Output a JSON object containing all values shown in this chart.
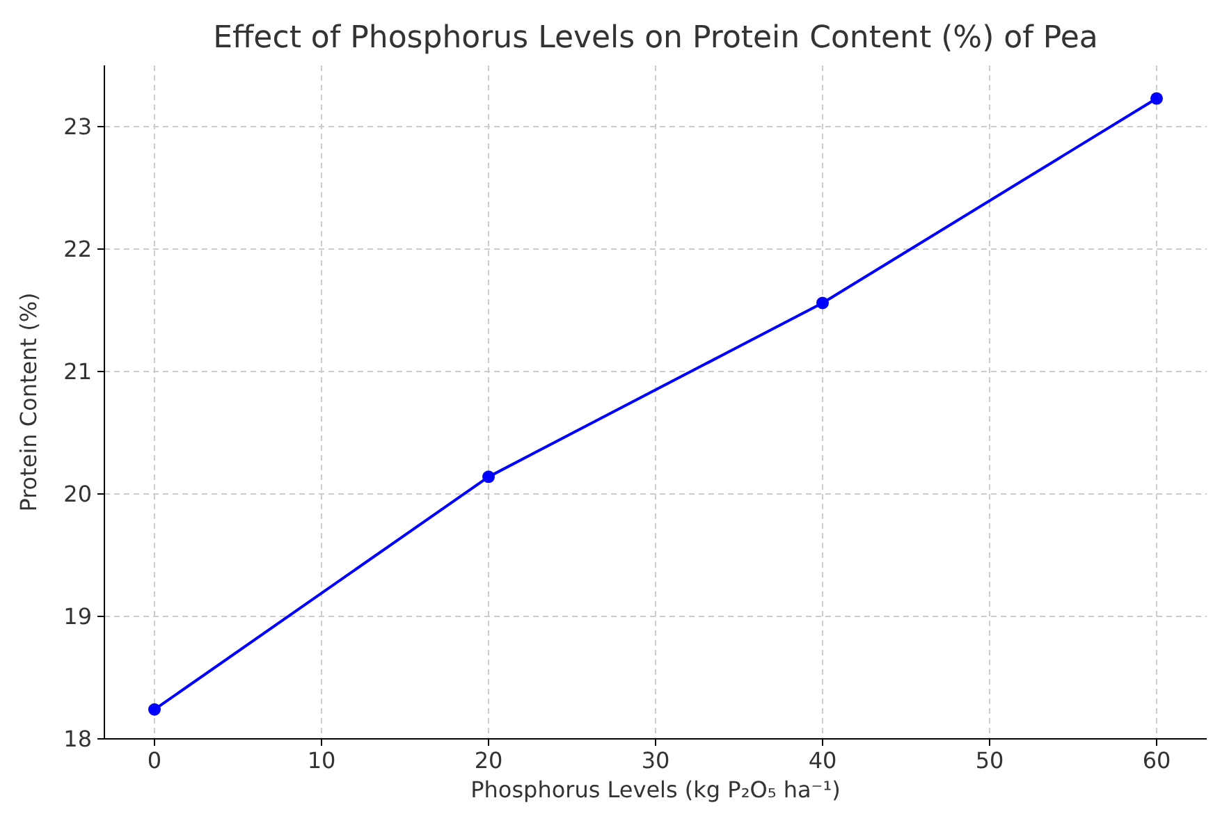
{
  "chart_data": {
    "type": "line",
    "title": "Effect of Phosphorus Levels on Protein Content (%) of Pea",
    "xlabel": "Phosphorus Levels (kg P₂O₅ ha⁻¹)",
    "ylabel": "Protein Content (%)",
    "x": [
      0,
      20,
      40,
      60
    ],
    "series": [
      {
        "color": "#0000ff",
        "values": [
          18.24,
          20.14,
          21.56,
          23.23
        ]
      }
    ],
    "xlim": [
      -3,
      63
    ],
    "xticks": [
      0,
      10,
      20,
      30,
      40,
      50,
      60
    ],
    "ylim": [
      18,
      23.5
    ],
    "yticks": [
      18,
      19,
      20,
      21,
      22,
      23
    ],
    "grid": true,
    "marker": "circle",
    "line_style": "solid"
  }
}
